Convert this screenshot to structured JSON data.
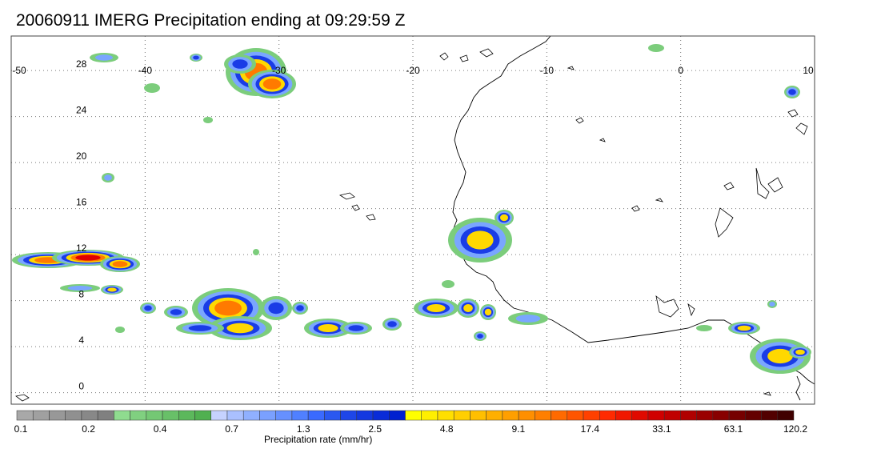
{
  "title": "20060911 IMERG Precipitation ending at 09:29:59 Z",
  "map": {
    "lon_range": [
      -50,
      10
    ],
    "lat_range": [
      -1,
      31
    ],
    "lon_ticks": [
      "-50",
      "-40",
      "-30",
      "-20",
      "-10",
      "0",
      "10"
    ],
    "lat_ticks": [
      "28",
      "24",
      "20",
      "16",
      "12",
      "8",
      "4",
      "0"
    ],
    "grid": "dotted"
  },
  "colorbar": {
    "label": "Precipitation rate (mm/hr)",
    "tick_labels": [
      "0.1",
      "0.2",
      "0.4",
      "0.7",
      "1.3",
      "2.5",
      "4.8",
      "9.1",
      "17.4",
      "33.1",
      "63.1",
      "120.2"
    ],
    "colors": [
      "#a8a8a8",
      "#a0a0a0",
      "#989898",
      "#909090",
      "#888888",
      "#808080",
      "#8fdc8f",
      "#80d080",
      "#74c874",
      "#68c068",
      "#5cb85c",
      "#50b050",
      "#c6d2ff",
      "#aac0ff",
      "#90b0ff",
      "#7aa0ff",
      "#6690ff",
      "#5080ff",
      "#3a6aff",
      "#2a58f0",
      "#1e46e8",
      "#1438e0",
      "#0a2cd8",
      "#0020d0",
      "#ffff00",
      "#ffef00",
      "#ffdf00",
      "#ffcf00",
      "#ffbf00",
      "#ffaf00",
      "#ff9f00",
      "#ff8f00",
      "#ff7f00",
      "#ff6a00",
      "#ff5500",
      "#ff4000",
      "#ff2a00",
      "#f01800",
      "#e00a00",
      "#d00000",
      "#c00000",
      "#b00000",
      "#9a0000",
      "#880000",
      "#760000",
      "#640000",
      "#520000",
      "#400000"
    ]
  }
}
